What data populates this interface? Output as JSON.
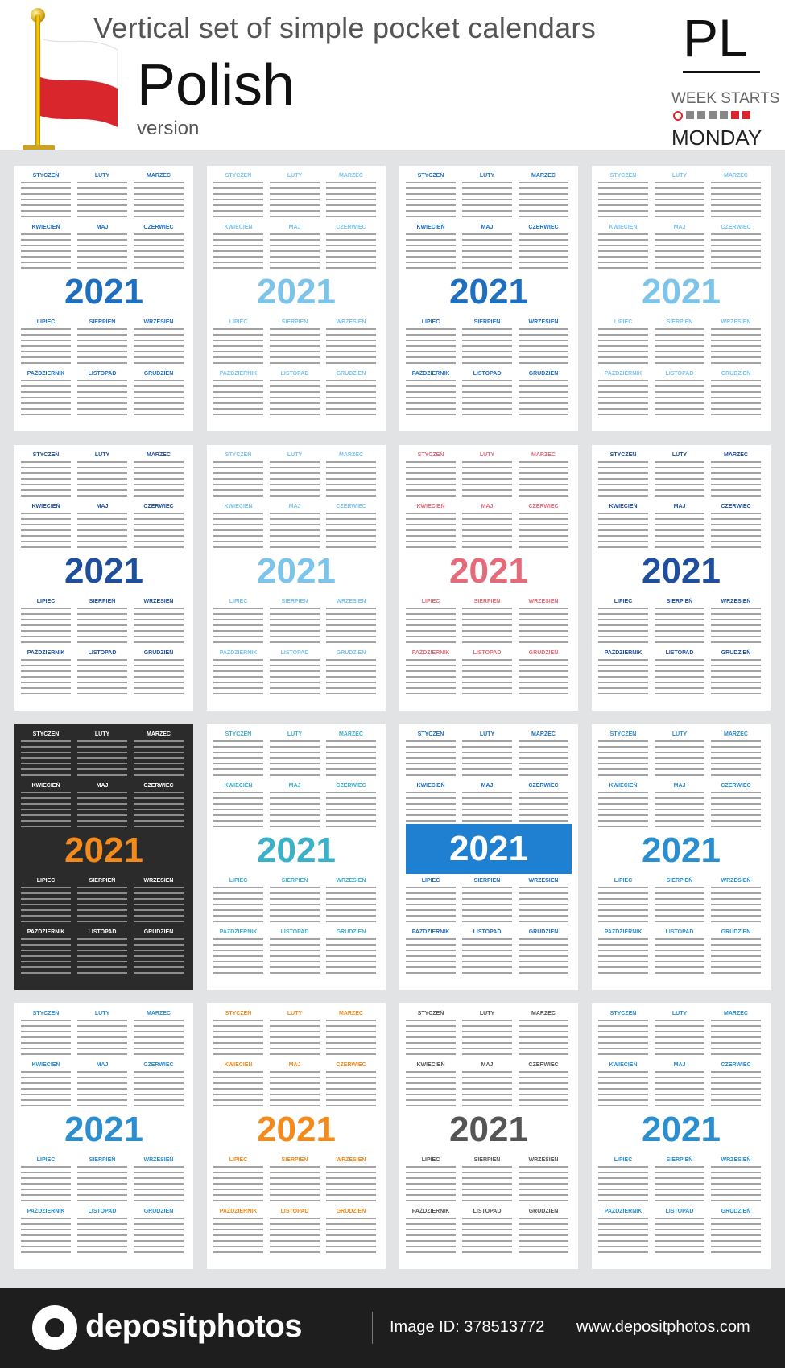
{
  "header": {
    "title": "Vertical  set of simple pocket calendars",
    "language": "Polish",
    "version": "version",
    "code": "PL",
    "week_starts": "WEEK STARTS",
    "week_day": "MONDAY"
  },
  "months": [
    "STYCZEŃ",
    "LUTY",
    "MARZEC",
    "KWIECIEŃ",
    "MAJ",
    "CZERWIEC",
    "LIPIEC",
    "SIERPIEŃ",
    "WRZESIEŃ",
    "PAŹDZIERNIK",
    "LISTOPAD",
    "GRUDZIEŃ"
  ],
  "cards": [
    {
      "year": "2021",
      "color": "#1f6fc1"
    },
    {
      "year": "2021",
      "color": "#7cc4ea"
    },
    {
      "year": "2021",
      "color": "#1f6fc1"
    },
    {
      "year": "2021",
      "color": "#7cc4ea"
    },
    {
      "year": "2021",
      "color": "#1f4f9c"
    },
    {
      "year": "2021",
      "color": "#7cc4ea"
    },
    {
      "year": "2021",
      "color": "#e36b7a"
    },
    {
      "year": "2021",
      "color": "#1f4f9c"
    },
    {
      "year": "2021",
      "color": "#f28a1c"
    },
    {
      "year": "2021",
      "color": "#3bb0c9"
    },
    {
      "year": "2021",
      "color": "#ffffff"
    },
    {
      "year": "2021",
      "color": "#2a8ecf"
    },
    {
      "year": "2021",
      "color": "#2a8ecf"
    },
    {
      "year": "2021",
      "color": "#f28a1c"
    },
    {
      "year": "2021",
      "color": "#555555"
    },
    {
      "year": "2021",
      "color": "#2a8ecf"
    }
  ],
  "footer": {
    "brand": "depositphotos",
    "image_id": "Image ID: 378513772",
    "site": "www.depositphotos.com"
  },
  "colors": {
    "flag_red": "#d9262c",
    "accent_blue": "#1f6fc1"
  }
}
